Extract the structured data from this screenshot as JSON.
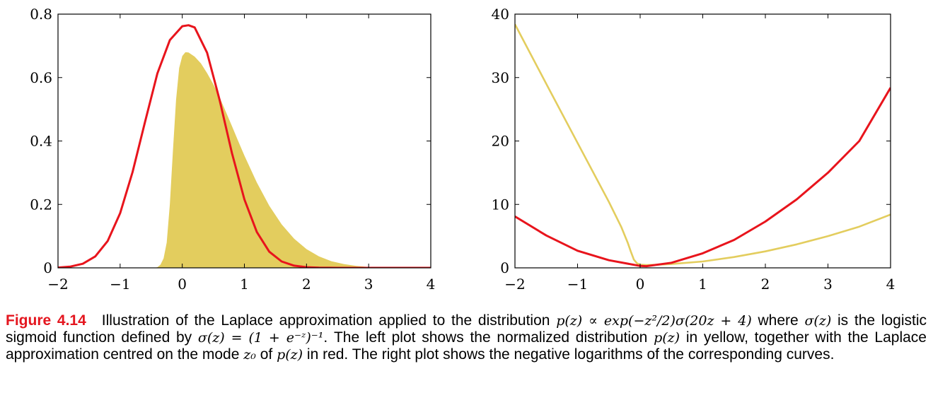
{
  "colors": {
    "yellow": "#e3cd5e",
    "red": "#e8141c",
    "caption_label": "#e4161f"
  },
  "caption": {
    "label": "Figure 4.14",
    "s1": "Illustration of the Laplace approximation applied to the distribution",
    "m1": "p(z) ∝ exp(−z²/2)σ(20z + 4)",
    "s2": "where",
    "m2": "σ(z)",
    "s3": "is the logistic sigmoid function defined by",
    "m3": "σ(z) = (1 + e⁻ᶻ)⁻¹",
    "s4": ". The left plot shows the normalized distribution",
    "m4": "p(z)",
    "s5": "in yellow, together with the Laplace approximation centred on the mode",
    "m5": "z₀",
    "s6": "of",
    "m6": "p(z)",
    "s7": "in red. The right plot shows the negative logarithms of the corresponding curves."
  },
  "chart_data": [
    {
      "type": "area",
      "xlim": [
        -2,
        4
      ],
      "ylim": [
        0,
        0.8
      ],
      "x_ticks": [
        "−2",
        "−1",
        "0",
        "1",
        "2",
        "3",
        "4"
      ],
      "y_ticks": [
        "0",
        "0.2",
        "0.4",
        "0.6",
        "0.8"
      ],
      "grid": false,
      "series": [
        {
          "color": "yellow",
          "fill": true,
          "x": [
            -2,
            -0.45,
            -0.4,
            -0.35,
            -0.3,
            -0.25,
            -0.2,
            -0.15,
            -0.1,
            -0.05,
            0,
            0.05,
            0.1,
            0.2,
            0.3,
            0.4,
            0.5,
            0.6,
            0.7,
            0.8,
            0.9,
            1.0,
            1.2,
            1.4,
            1.6,
            1.8,
            2.0,
            2.2,
            2.4,
            2.6,
            2.8,
            3.0,
            3.5,
            4.0
          ],
          "y": [
            0,
            0,
            0.002,
            0.01,
            0.03,
            0.08,
            0.2,
            0.37,
            0.53,
            0.63,
            0.668,
            0.68,
            0.679,
            0.666,
            0.645,
            0.614,
            0.579,
            0.538,
            0.493,
            0.447,
            0.4,
            0.354,
            0.269,
            0.196,
            0.137,
            0.092,
            0.059,
            0.036,
            0.021,
            0.012,
            0.006,
            0.003,
            0.0004,
            0
          ]
        },
        {
          "color": "red",
          "fill": false,
          "x": [
            -2,
            -1.8,
            -1.6,
            -1.4,
            -1.2,
            -1.0,
            -0.8,
            -0.6,
            -0.4,
            -0.2,
            0,
            0.1,
            0.2,
            0.4,
            0.6,
            0.8,
            1.0,
            1.2,
            1.4,
            1.6,
            1.8,
            2.0,
            2.2,
            2.5,
            3.0,
            4.0
          ],
          "y": [
            0.001,
            0.004,
            0.013,
            0.036,
            0.085,
            0.172,
            0.302,
            0.46,
            0.613,
            0.718,
            0.762,
            0.765,
            0.758,
            0.678,
            0.53,
            0.362,
            0.216,
            0.113,
            0.051,
            0.02,
            0.007,
            0.002,
            0.0005,
            0,
            0,
            0
          ]
        }
      ]
    },
    {
      "type": "line",
      "xlim": [
        -2,
        4
      ],
      "ylim": [
        0,
        40
      ],
      "x_ticks": [
        "−2",
        "−1",
        "0",
        "1",
        "2",
        "3",
        "4"
      ],
      "y_ticks": [
        "0",
        "10",
        "20",
        "30",
        "40"
      ],
      "grid": false,
      "series": [
        {
          "color": "yellow",
          "x": [
            -2,
            -1.5,
            -1.0,
            -0.5,
            -0.3,
            -0.2,
            -0.15,
            -0.1,
            -0.05,
            0,
            0.1,
            0.3,
            0.5,
            1.0,
            1.5,
            2.0,
            2.5,
            3.0,
            3.5,
            4.0
          ],
          "y": [
            38.4,
            29.0,
            19.7,
            10.4,
            6.4,
            4.0,
            2.6,
            1.3,
            0.7,
            0.5,
            0.45,
            0.5,
            0.6,
            1.0,
            1.7,
            2.6,
            3.7,
            5.0,
            6.5,
            8.4
          ]
        },
        {
          "color": "red",
          "x": [
            -2,
            -1.5,
            -1.0,
            -0.5,
            0,
            0.1,
            0.5,
            1.0,
            1.5,
            2.0,
            2.5,
            3.0,
            3.5,
            4.0
          ],
          "y": [
            8.1,
            5.1,
            2.7,
            1.2,
            0.3,
            0.27,
            0.8,
            2.3,
            4.4,
            7.3,
            10.8,
            15.0,
            20.0,
            28.4
          ]
        }
      ]
    }
  ]
}
